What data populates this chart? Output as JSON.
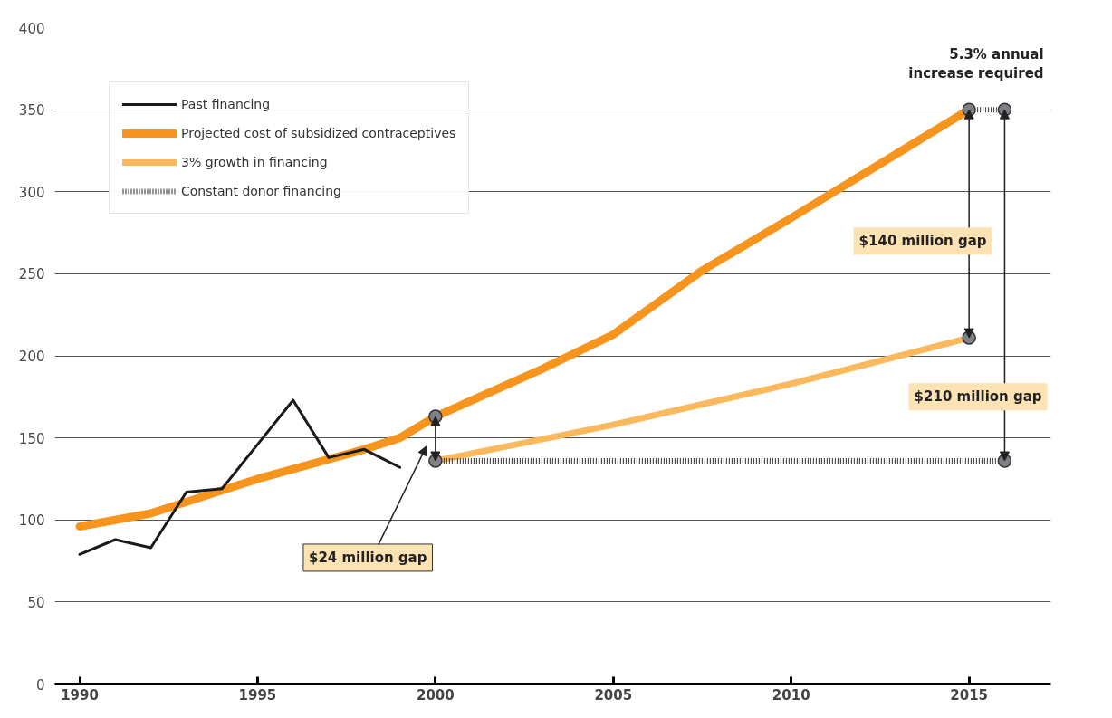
{
  "chart_data": {
    "type": "line",
    "xlim": [
      1989.3,
      2017.3
    ],
    "xticks": [
      1990,
      1995,
      2000,
      2005,
      2010,
      2015
    ],
    "ylim": [
      0,
      400
    ],
    "yticks": [
      0,
      50,
      100,
      150,
      200,
      250,
      300,
      350,
      400
    ],
    "grid": "y",
    "legend": "top left",
    "series": [
      {
        "name": "Past financing",
        "color": "#1a1a1a",
        "x": [
          1990,
          1991,
          1992,
          1993,
          1994,
          1995,
          1996,
          1997,
          1998,
          1999
        ],
        "values": [
          79,
          88,
          83,
          117,
          119,
          146,
          173,
          138,
          143,
          132
        ]
      },
      {
        "name": "Projected cost of subsidized contraceptives",
        "color": "#f7941d",
        "x": [
          1990,
          1992,
          1995,
          1998,
          1999,
          2000,
          2003,
          2005,
          2007.5,
          2010,
          2015
        ],
        "values": [
          96,
          104,
          125,
          143,
          150,
          163,
          192,
          213,
          252,
          284,
          350
        ]
      },
      {
        "name": "3% growth in financing",
        "color": "#fbb95e",
        "x": [
          2000,
          2005,
          2010,
          2015
        ],
        "values": [
          136,
          158,
          183,
          211
        ]
      },
      {
        "name": "Constant donor financing",
        "color": "#333333",
        "line_style": "dotted",
        "x": [
          2000,
          2016
        ],
        "values": [
          136,
          136
        ]
      },
      {
        "color": "#333333",
        "line_style": "dotted",
        "x": [
          2015,
          2016
        ],
        "values": [
          350,
          350
        ]
      },
      {
        "type": "scatter",
        "color": "#7f7f85",
        "x": [
          2000,
          2000,
          2015,
          2015,
          2016,
          2016
        ],
        "values": [
          163,
          136,
          350,
          211,
          350,
          136
        ]
      }
    ],
    "annotations": [
      "$24 million gap",
      "$140 million gap",
      "$210 million gap",
      "5.3% annual\nincrease required"
    ]
  }
}
